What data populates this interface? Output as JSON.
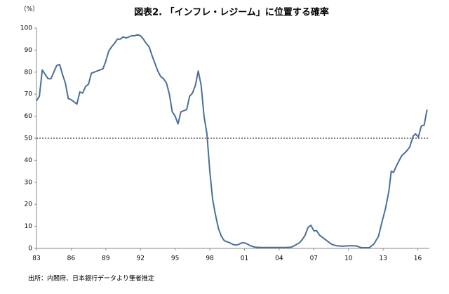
{
  "chart_data": {
    "type": "line",
    "title": "図表2. 「インフレ・レジーム」に位置する確率",
    "y_label": "（%）",
    "source": "出所：内閣府、日本銀行データより筆者推定",
    "x": [
      1983.0,
      1983.25,
      1983.5,
      1983.75,
      1984.0,
      1984.25,
      1984.5,
      1984.75,
      1985.0,
      1985.25,
      1985.5,
      1985.75,
      1986.0,
      1986.25,
      1986.5,
      1986.75,
      1987.0,
      1987.25,
      1987.5,
      1987.75,
      1988.0,
      1988.25,
      1988.5,
      1988.75,
      1989.0,
      1989.25,
      1989.5,
      1989.75,
      1990.0,
      1990.25,
      1990.5,
      1990.75,
      1991.0,
      1991.25,
      1991.5,
      1991.75,
      1992.0,
      1992.25,
      1992.5,
      1992.75,
      1993.0,
      1993.25,
      1993.5,
      1993.75,
      1994.0,
      1994.25,
      1994.5,
      1994.75,
      1995.0,
      1995.25,
      1995.5,
      1995.75,
      1996.0,
      1996.25,
      1996.5,
      1996.75,
      1997.0,
      1997.25,
      1997.5,
      1997.75,
      1998.0,
      1998.25,
      1998.5,
      1998.75,
      1999.0,
      1999.25,
      1999.5,
      1999.75,
      2000.0,
      2000.25,
      2000.5,
      2000.75,
      2001.0,
      2001.25,
      2001.5,
      2001.75,
      2002.0,
      2002.5,
      2003.0,
      2003.5,
      2004.0,
      2004.5,
      2005.0,
      2005.25,
      2005.5,
      2005.75,
      2006.0,
      2006.25,
      2006.5,
      2006.75,
      2007.0,
      2007.25,
      2007.5,
      2007.75,
      2008.0,
      2008.25,
      2008.5,
      2008.75,
      2009.0,
      2009.5,
      2010.0,
      2010.5,
      2010.75,
      2011.0,
      2011.25,
      2011.5,
      2011.8,
      2012.2,
      2012.6,
      2012.9,
      2013.2,
      2013.5,
      2013.7,
      2013.9,
      2014.2,
      2014.6,
      2015.0,
      2015.3,
      2015.6,
      2015.8,
      2016.05,
      2016.3,
      2016.55,
      2016.8
    ],
    "series": [
      {
        "name": "確率",
        "color": "#4a6f9c",
        "values": [
          67,
          69,
          81,
          79,
          77,
          77,
          80,
          83,
          83.5,
          79,
          75,
          68,
          67.5,
          66.5,
          65.5,
          71,
          70.5,
          73.5,
          74.5,
          79.5,
          80,
          80.5,
          81,
          81.5,
          85,
          89.5,
          91.5,
          93,
          95,
          95,
          96,
          95.5,
          96,
          96.5,
          96.5,
          97,
          96.5,
          95,
          93,
          91.5,
          87.5,
          84,
          80.5,
          78,
          77,
          75,
          70,
          62,
          60,
          56.5,
          62,
          62.5,
          63,
          69,
          70.5,
          74,
          80.5,
          74,
          60,
          52,
          35,
          22,
          15,
          9,
          5.5,
          3.5,
          3,
          2.5,
          1.8,
          1.5,
          1.8,
          2.5,
          2.5,
          2,
          1.2,
          0.8,
          0.5,
          0.4,
          0.4,
          0.4,
          0.4,
          0.4,
          0.5,
          1,
          1.8,
          2.5,
          4,
          6,
          9.5,
          10.5,
          8,
          8,
          6,
          5,
          4,
          3,
          2,
          1.5,
          1.2,
          1,
          1.2,
          1.2,
          1,
          0.5,
          0.3,
          0.3,
          0.3,
          2,
          5.5,
          12,
          18,
          26,
          35,
          34.5,
          38,
          42,
          44,
          46,
          51,
          52,
          50.5,
          55.5,
          56,
          63
        ]
      }
    ],
    "reference_line": 50,
    "xlim": [
      1983,
      2017
    ],
    "ylim": [
      0,
      100
    ],
    "xticks": [
      {
        "value": 1983,
        "label": "83"
      },
      {
        "value": 1986,
        "label": "86"
      },
      {
        "value": 1989,
        "label": "89"
      },
      {
        "value": 1992,
        "label": "92"
      },
      {
        "value": 1995,
        "label": "95"
      },
      {
        "value": 1998,
        "label": "98"
      },
      {
        "value": 2001,
        "label": "01"
      },
      {
        "value": 2004,
        "label": "04"
      },
      {
        "value": 2007,
        "label": "07"
      },
      {
        "value": 2010,
        "label": "10"
      },
      {
        "value": 2013,
        "label": "13"
      },
      {
        "value": 2016,
        "label": "16"
      }
    ],
    "yticks": [
      0,
      10,
      20,
      30,
      40,
      50,
      60,
      70,
      80,
      90,
      100
    ]
  }
}
